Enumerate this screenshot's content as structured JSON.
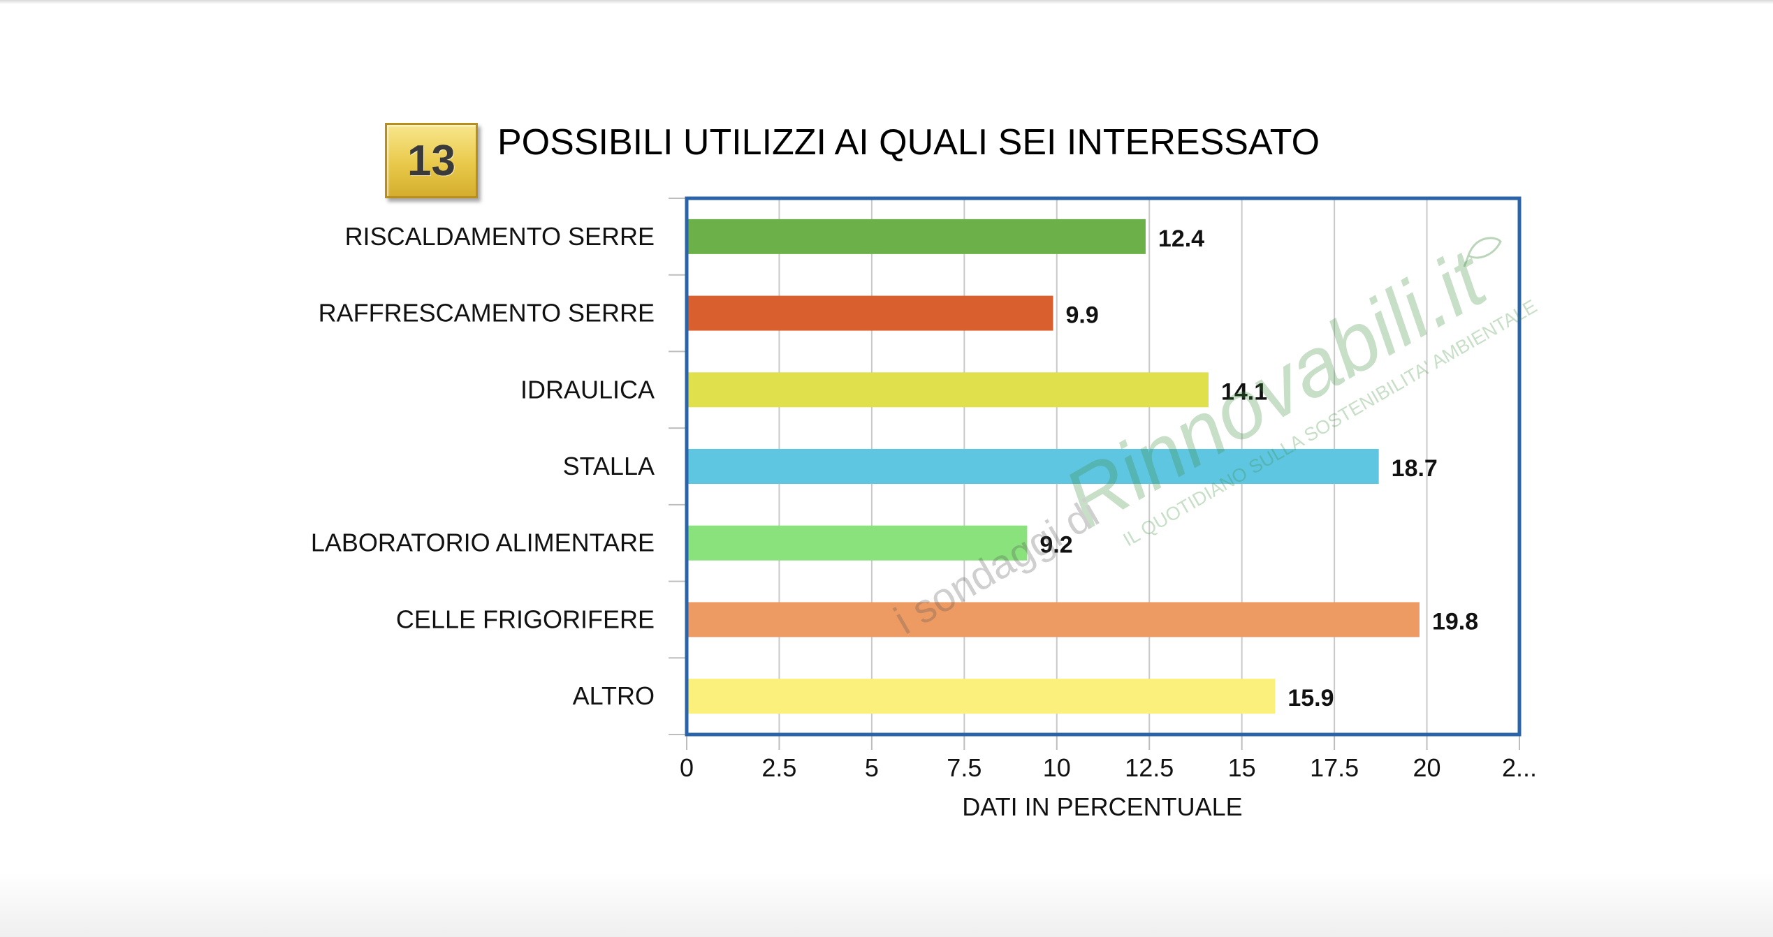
{
  "badge": {
    "number": "13"
  },
  "chart_data": {
    "type": "bar",
    "orientation": "horizontal",
    "title": "POSSIBILI UTILIZZI AI QUALI SEI INTERESSATO",
    "xlabel": "DATI IN PERCENTUALE",
    "ylabel": "",
    "categories": [
      "RISCALDAMENTO SERRE",
      "RAFFRESCAMENTO SERRE",
      "IDRAULICA",
      "STALLA",
      "LABORATORIO ALIMENTARE",
      "CELLE FRIGORIFERE",
      "ALTRO"
    ],
    "values": [
      12.4,
      9.9,
      14.1,
      18.7,
      9.2,
      19.8,
      15.9
    ],
    "value_labels": [
      "12.4",
      "9.9",
      "14.1",
      "18.7",
      "9.2",
      "19.8",
      "15.9"
    ],
    "colors": [
      "#6cb049",
      "#d95f2e",
      "#dfe04c",
      "#5fc6e2",
      "#89e27b",
      "#ee9b63",
      "#fbf07c"
    ],
    "xlim": [
      0,
      22.5
    ],
    "x_ticks": [
      "0",
      "2.5",
      "5",
      "7.5",
      "10",
      "12.5",
      "15",
      "17.5",
      "20",
      "2..."
    ],
    "grid": true,
    "frame_color": "#2b63a8"
  },
  "watermark": {
    "brand": "Rinnovabili.it",
    "prefix": "i sondaggi di",
    "tagline": "IL QUOTIDIANO SULLA SOSTENIBILITA' AMBIENTALE"
  }
}
